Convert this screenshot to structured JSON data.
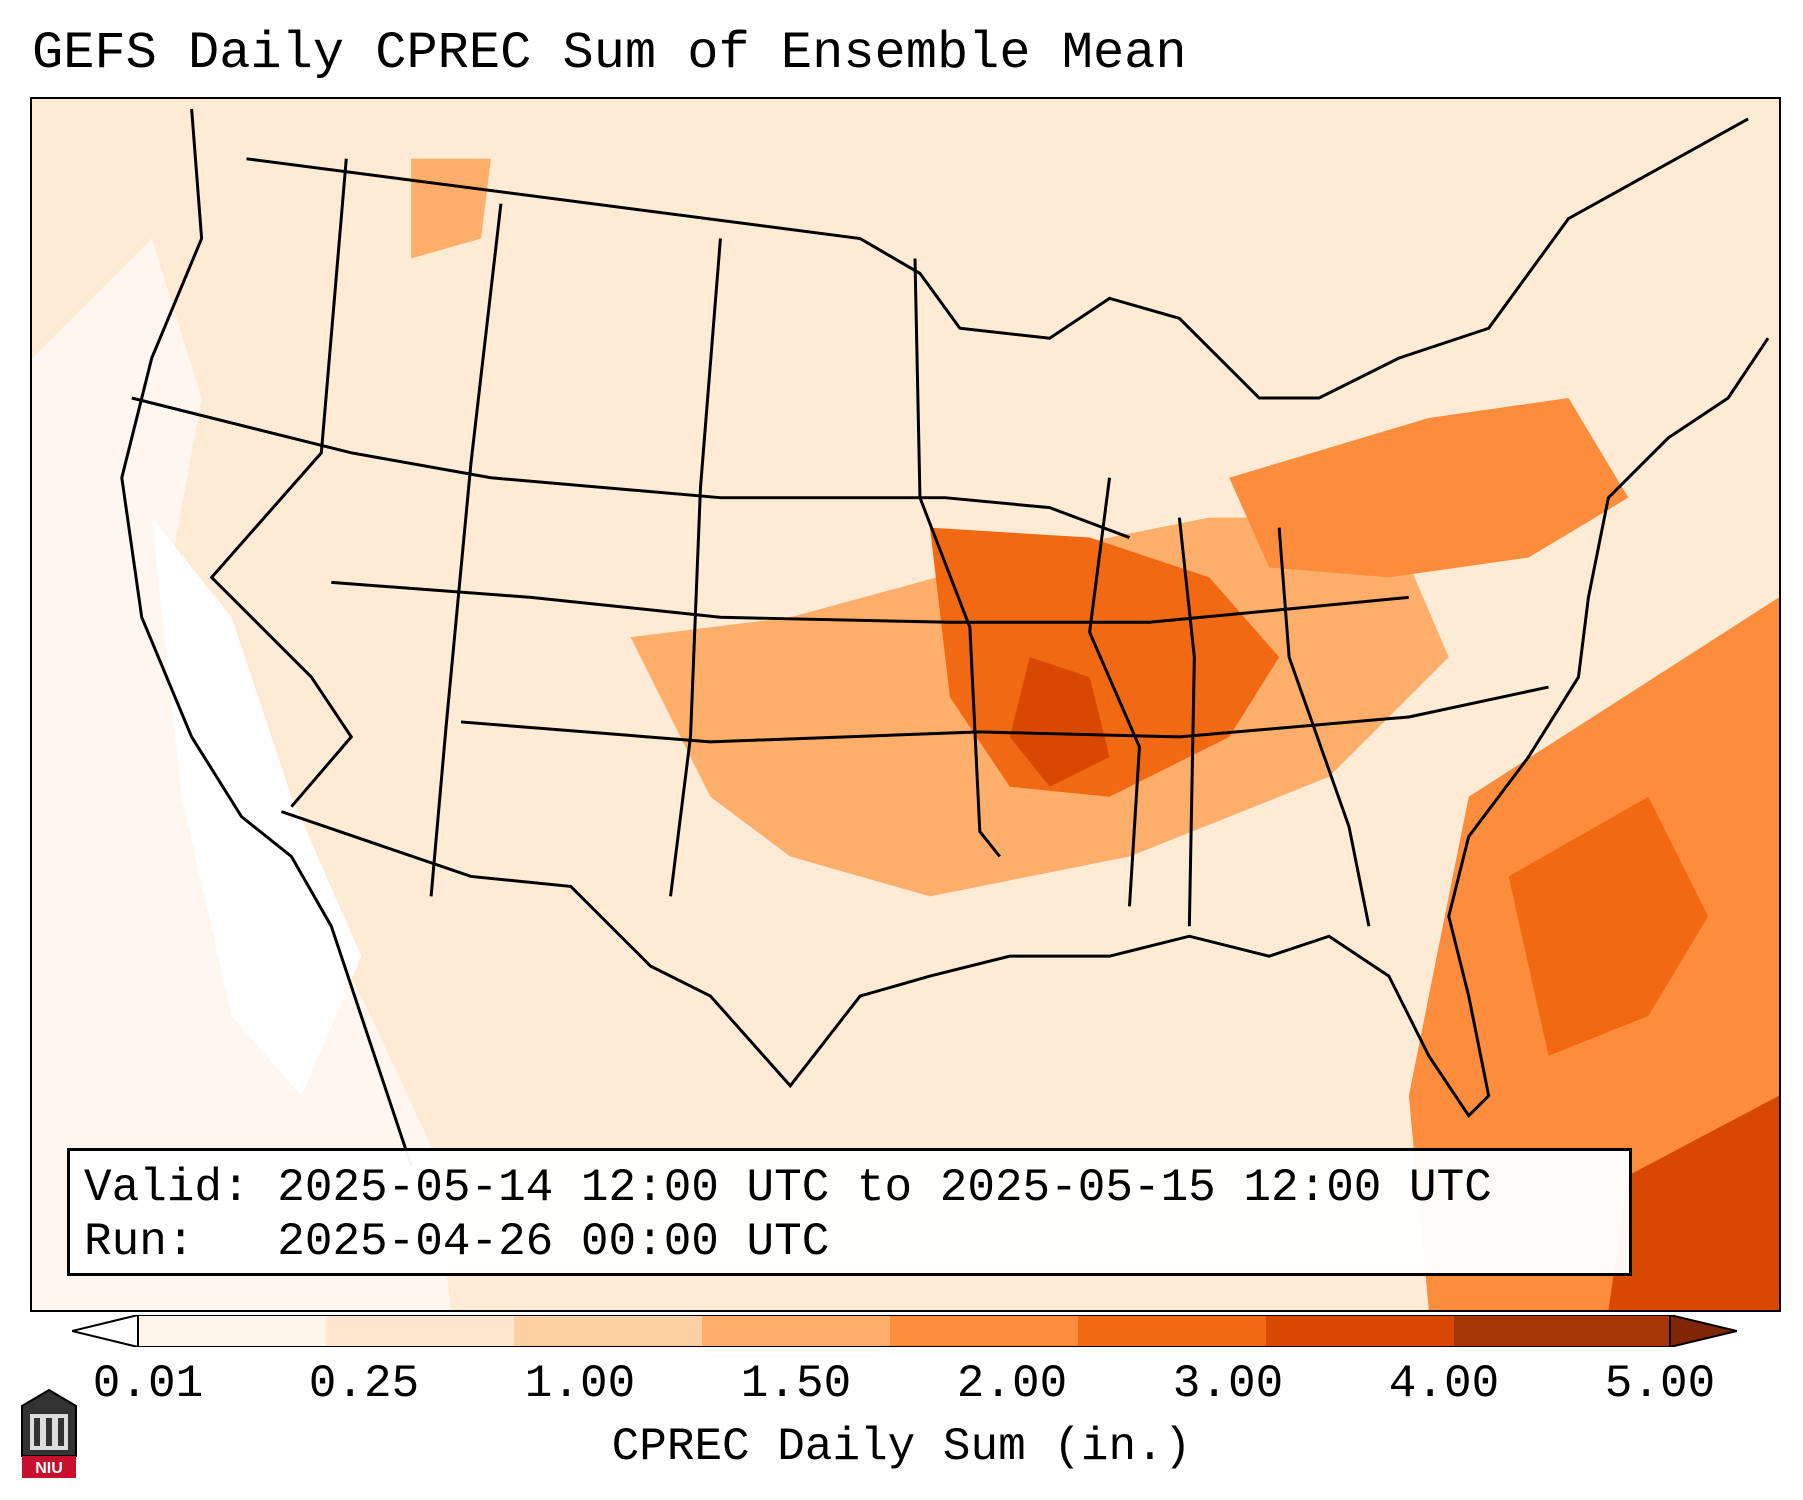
{
  "title": "GEFS Daily CPREC Sum of Ensemble Mean",
  "info": {
    "valid_line": "Valid: 2025-05-14 12:00 UTC to 2025-05-15 12:00 UTC",
    "run_line": "Run:   2025-04-26 00:00 UTC"
  },
  "colorbar": {
    "label": "CPREC Daily Sum (in.)",
    "ticks": [
      "0.01",
      "0.25",
      "1.00",
      "1.50",
      "2.00",
      "3.00",
      "4.00",
      "5.00"
    ],
    "colors": [
      "#ffffff",
      "#fff5eb",
      "#fee6ce",
      "#fdd0a2",
      "#fdae6b",
      "#fd8d3c",
      "#f16913",
      "#d94801",
      "#a63603",
      "#7f2704"
    ],
    "extend": "both"
  },
  "logo": {
    "text": "NIU",
    "icon": "niu-building-icon"
  }
}
